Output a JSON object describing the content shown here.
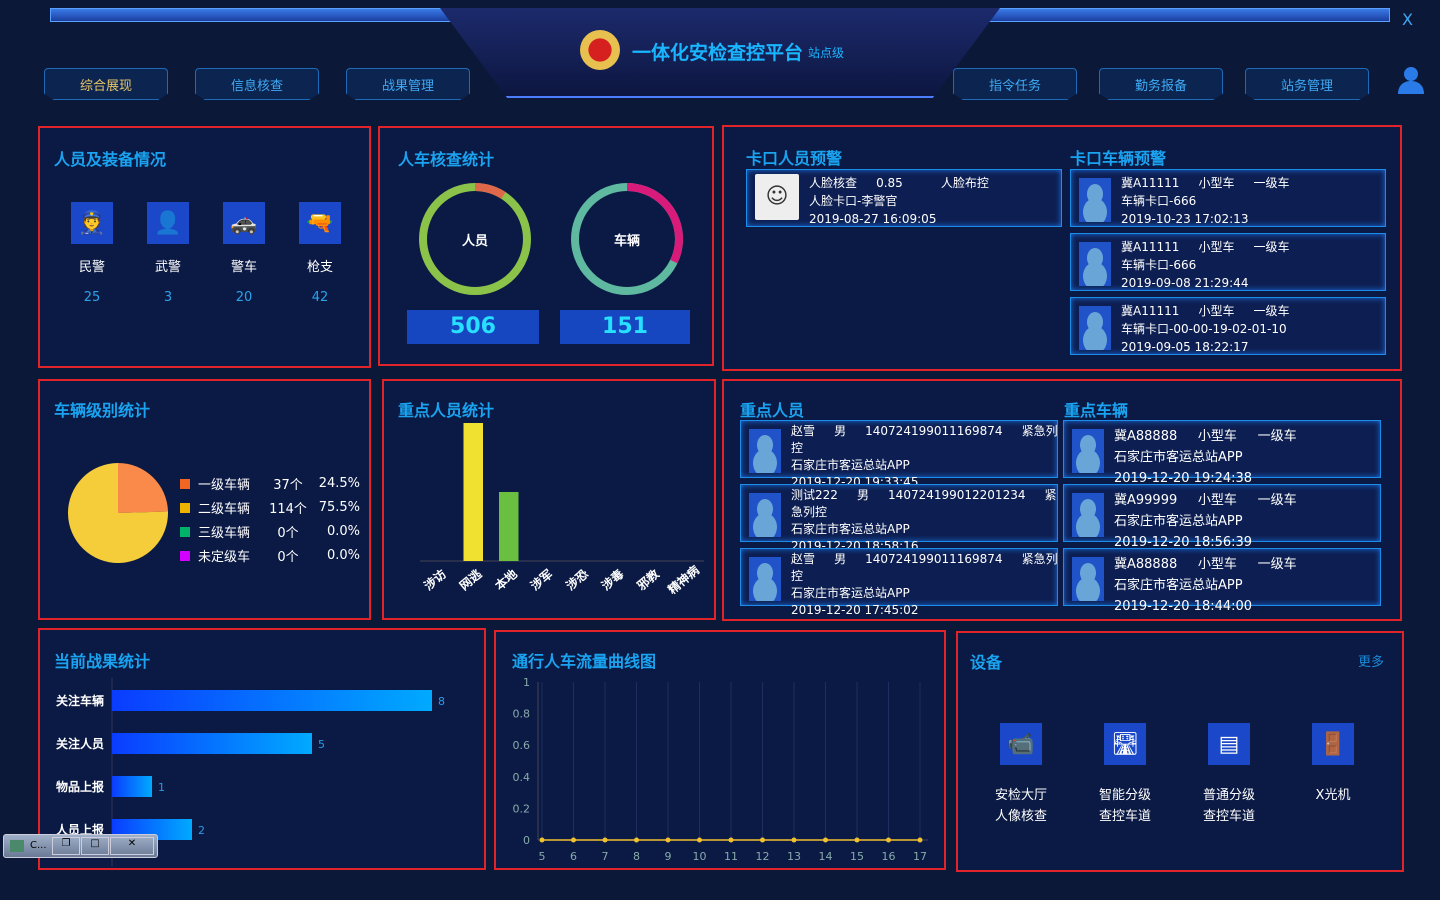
{
  "header": {
    "title": "一体化安检查控平台",
    "subtitle": "站点级",
    "close": "X",
    "nav_left": [
      "综合展现",
      "信息核查",
      "战果管理"
    ],
    "nav_right": [
      "指令任务",
      "勤务报备",
      "站务管理"
    ]
  },
  "staff": {
    "title": "人员及装备情况",
    "items": [
      {
        "label": "民警",
        "value": "25",
        "icon": "police-officer-icon"
      },
      {
        "label": "武警",
        "value": "3",
        "icon": "armed-police-icon"
      },
      {
        "label": "警车",
        "value": "20",
        "icon": "police-car-icon"
      },
      {
        "label": "枪支",
        "value": "42",
        "icon": "gun-icon"
      }
    ]
  },
  "check": {
    "title": "人车核查统计",
    "person": {
      "label": "人员",
      "value": "506",
      "color": "#8bc34a",
      "accent": "#e0684a"
    },
    "vehicle": {
      "label": "车辆",
      "value": "151",
      "color": "#5fb8a0",
      "accent": "#d81b7a"
    }
  },
  "checkpoint": {
    "person_title": "卡口人员预警",
    "vehicle_title": "卡口车辆预警",
    "persons": [
      {
        "line1": "人脸核查     0.85          人脸布控",
        "line2": "人脸卡口-李警官",
        "line3": "2019-08-27 16:09:05"
      }
    ],
    "vehicles": [
      {
        "line1": "冀A11111     小型车     一级车",
        "line2": "车辆卡口-666",
        "line3": "2019-10-23 17:02:13"
      },
      {
        "line1": "冀A11111     小型车     一级车",
        "line2": "车辆卡口-666",
        "line3": "2019-09-08 21:29:44"
      },
      {
        "line1": "冀A11111     小型车     一级车",
        "line2": "车辆卡口-00-00-19-02-01-10",
        "line3": "2019-09-05 18:22:17"
      }
    ]
  },
  "vehicle_level": {
    "title": "车辆级别统计",
    "chart_data": {
      "type": "pie",
      "categories": [
        "一级车辆",
        "二级车辆",
        "三级车辆",
        "未定级车"
      ],
      "counts": [
        "37个",
        "114个",
        "0个",
        "0个"
      ],
      "percents": [
        "24.5%",
        "75.5%",
        "0.0%",
        "0.0%"
      ],
      "values": [
        37,
        114,
        0,
        0
      ],
      "colors": [
        "#f26522",
        "#f0b400",
        "#00b26a",
        "#d400ff"
      ]
    }
  },
  "key_person_stats": {
    "title": "重点人员统计",
    "chart_data": {
      "type": "bar",
      "categories": [
        "涉访",
        "网逃",
        "本地",
        "涉军",
        "涉恐",
        "涉毒",
        "邪教",
        "精神病"
      ],
      "values": [
        0,
        2,
        1,
        0,
        0,
        0,
        0,
        0
      ],
      "colors": [
        "#8bc34a",
        "#f0e030",
        "#6abf40",
        "#8bc34a",
        "#8bc34a",
        "#8bc34a",
        "#8bc34a",
        "#8bc34a"
      ]
    }
  },
  "key": {
    "person_title": "重点人员",
    "vehicle_title": "重点车辆",
    "persons": [
      {
        "line1": "赵雪     男     140724199011169874     紧急列",
        "line2": "控",
        "line3": "石家庄市客运总站APP",
        "line4": "2019-12-20 19:33:45"
      },
      {
        "line1": "测试222     男     140724199012201234     紧",
        "line2": "急列控",
        "line3": "石家庄市客运总站APP",
        "line4": "2019-12-20 18:58:16"
      },
      {
        "line1": "赵雪     男     140724199011169874     紧急列",
        "line2": "控",
        "line3": "石家庄市客运总站APP",
        "line4": "2019-12-20 17:45:02"
      }
    ],
    "vehicles": [
      {
        "line1": "冀A88888     小型车     一级车",
        "line2": "石家庄市客运总站APP",
        "line3": "2019-12-20 19:24:38"
      },
      {
        "line1": "冀A99999     小型车     一级车",
        "line2": "石家庄市客运总站APP",
        "line3": "2019-12-20 18:56:39"
      },
      {
        "line1": "冀A88888     小型车     一级车",
        "line2": "石家庄市客运总站APP",
        "line3": "2019-12-20 18:44:00"
      }
    ]
  },
  "results": {
    "title": "当前战果统计",
    "chart_data": {
      "type": "bar",
      "orientation": "horizontal",
      "categories": [
        "关注车辆",
        "关注人员",
        "物品上报",
        "人员上报"
      ],
      "values": [
        8,
        5,
        1,
        2
      ],
      "xlim": [
        0,
        8
      ]
    }
  },
  "flow": {
    "title": "通行人车流量曲线图",
    "chart_data": {
      "type": "line",
      "x": [
        5,
        6,
        7,
        8,
        9,
        10,
        11,
        12,
        13,
        14,
        15,
        16,
        17
      ],
      "y": [
        0,
        0,
        0,
        0,
        0,
        0,
        0,
        0,
        0,
        0,
        0,
        0,
        0
      ],
      "ylim": [
        0,
        1
      ],
      "yticks": [
        "0",
        "0.2",
        "0.4",
        "0.6",
        "0.8",
        "1"
      ],
      "color": "#f0c030"
    }
  },
  "devices": {
    "title": "设备",
    "more": "更多",
    "items": [
      {
        "line1": "安检大厅",
        "line2": "人像核查",
        "icon": "camera-icon"
      },
      {
        "line1": "智能分级",
        "line2": "查控车道",
        "icon": "lane-camera-icon"
      },
      {
        "line1": "普通分级",
        "line2": "查控车道",
        "icon": "cabinet-icon"
      },
      {
        "line1": "X光机",
        "line2": "",
        "icon": "xray-gate-icon"
      }
    ]
  },
  "taskbar": {
    "label": "C..."
  }
}
